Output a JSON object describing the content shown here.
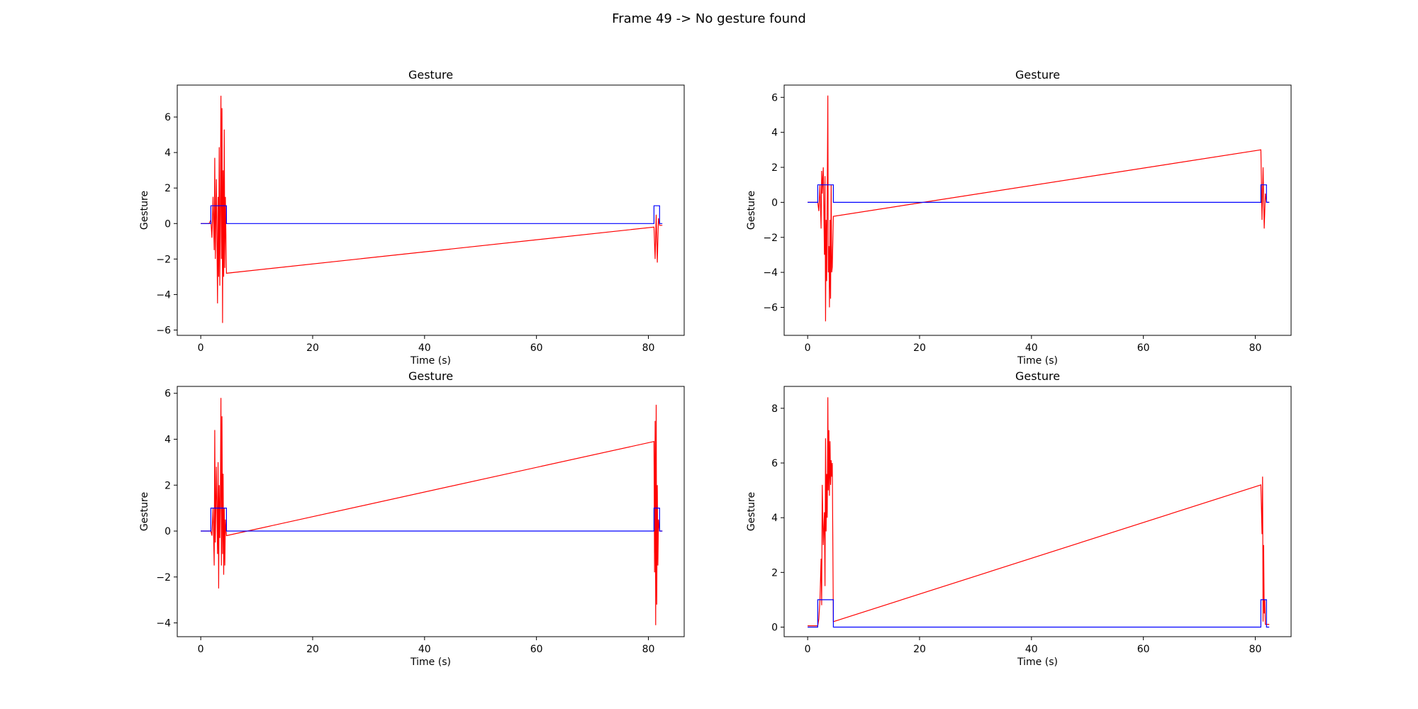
{
  "figure": {
    "suptitle": "Frame 49 -> No gesture found"
  },
  "colors": {
    "signal": "#ff0000",
    "label": "#0000ff",
    "axes": "#000000"
  },
  "chart_data": [
    {
      "type": "line",
      "title": "Gesture",
      "xlabel": "Time (s)",
      "ylabel": "Gesture",
      "xlim": [
        -4.2,
        86.4
      ],
      "ylim": [
        -6.3,
        7.8
      ],
      "xticks": [
        0,
        20,
        40,
        60,
        80
      ],
      "yticks": [
        -6,
        -4,
        -2,
        0,
        2,
        4,
        6
      ],
      "series": [
        {
          "color": "#ff0000",
          "x": [
            0,
            1,
            1.5,
            1.8,
            2.0,
            2.2,
            2.4,
            2.5,
            2.6,
            2.8,
            3.0,
            3.1,
            3.2,
            3.3,
            3.4,
            3.5,
            3.6,
            3.7,
            3.8,
            3.9,
            4.0,
            4.1,
            4.2,
            4.3,
            4.4,
            4.6,
            81.0,
            81.2,
            81.4,
            81.6,
            81.8,
            82.0,
            82.5
          ],
          "y": [
            0,
            0,
            0,
            0.2,
            -0.8,
            1.5,
            -1.5,
            3.7,
            -2.0,
            2.5,
            -4.5,
            1.5,
            -3.0,
            4.3,
            -3.5,
            0.8,
            7.2,
            -2.0,
            6.5,
            -5.6,
            3.0,
            -3.0,
            5.3,
            -2.5,
            1.5,
            -2.8,
            -0.2,
            -2.0,
            0.5,
            -2.2,
            0.3,
            -0.1,
            -0.1
          ]
        },
        {
          "color": "#0000ff",
          "x": [
            0,
            1.8,
            1.8,
            4.6,
            4.6,
            81.0,
            81.0,
            82.0,
            82.0,
            82.5
          ],
          "y": [
            0,
            0,
            1,
            1,
            0,
            0,
            1,
            1,
            0,
            0
          ]
        }
      ]
    },
    {
      "type": "line",
      "title": "Gesture",
      "xlabel": "Time (s)",
      "ylabel": "Gesture",
      "xlim": [
        -4.2,
        86.4
      ],
      "ylim": [
        -7.6,
        6.7
      ],
      "xticks": [
        0,
        20,
        40,
        60,
        80
      ],
      "yticks": [
        -6,
        -4,
        -2,
        0,
        2,
        4,
        6
      ],
      "series": [
        {
          "color": "#ff0000",
          "x": [
            0,
            1,
            1.8,
            2.0,
            2.2,
            2.4,
            2.5,
            2.6,
            2.8,
            3.0,
            3.1,
            3.2,
            3.3,
            3.4,
            3.5,
            3.6,
            3.7,
            3.8,
            3.9,
            4.0,
            4.1,
            4.2,
            4.3,
            4.4,
            4.6,
            81.0,
            81.2,
            81.4,
            81.6,
            81.8,
            82.0,
            82.5
          ],
          "y": [
            0,
            0,
            0,
            -0.5,
            1.0,
            -1.5,
            1.8,
            0.5,
            2.0,
            -3.0,
            1.5,
            -6.8,
            -1.0,
            -4.5,
            0.5,
            6.1,
            -4.0,
            -2.5,
            -6.0,
            -1.0,
            -5.5,
            1.0,
            -4.0,
            -3.7,
            -0.8,
            3.0,
            -1.0,
            2.0,
            -1.5,
            0.5,
            0,
            0
          ]
        },
        {
          "color": "#0000ff",
          "x": [
            0,
            1.8,
            1.8,
            4.6,
            4.6,
            81.0,
            81.0,
            82.0,
            82.0,
            82.5
          ],
          "y": [
            0,
            0,
            1,
            1,
            0,
            0,
            1,
            1,
            0,
            0
          ]
        }
      ]
    },
    {
      "type": "line",
      "title": "Gesture",
      "xlabel": "Time (s)",
      "ylabel": "Gesture",
      "xlim": [
        -4.2,
        86.4
      ],
      "ylim": [
        -4.6,
        6.3
      ],
      "xticks": [
        0,
        20,
        40,
        60,
        80
      ],
      "yticks": [
        -4,
        -2,
        0,
        2,
        4,
        6
      ],
      "series": [
        {
          "color": "#ff0000",
          "x": [
            0,
            1,
            1.8,
            2.0,
            2.2,
            2.4,
            2.5,
            2.6,
            2.8,
            3.0,
            3.1,
            3.2,
            3.3,
            3.4,
            3.5,
            3.6,
            3.7,
            3.8,
            3.9,
            4.0,
            4.1,
            4.2,
            4.3,
            4.4,
            4.6,
            81.0,
            81.1,
            81.2,
            81.3,
            81.4,
            81.5,
            81.6,
            81.7,
            81.8,
            82.0,
            82.5
          ],
          "y": [
            0,
            0,
            0,
            -0.2,
            1.0,
            -1.5,
            4.4,
            -0.5,
            2.8,
            -1.0,
            3.0,
            -2.5,
            2.0,
            -0.3,
            1.5,
            5.8,
            -1.5,
            5.0,
            -1.0,
            2.5,
            -1.9,
            1.0,
            -1.5,
            0.5,
            -0.2,
            3.9,
            -1.8,
            4.8,
            -4.1,
            5.5,
            -3.2,
            2.0,
            -1.5,
            0.5,
            0,
            0
          ]
        },
        {
          "color": "#0000ff",
          "x": [
            0,
            1.8,
            1.8,
            4.6,
            4.6,
            81.0,
            81.0,
            82.0,
            82.0,
            82.5
          ],
          "y": [
            0,
            0,
            1,
            1,
            0,
            0,
            1,
            1,
            0,
            0
          ]
        }
      ]
    },
    {
      "type": "line",
      "title": "Gesture",
      "xlabel": "Time (s)",
      "ylabel": "Gesture",
      "xlim": [
        -4.2,
        86.4
      ],
      "ylim": [
        -0.35,
        8.8
      ],
      "xticks": [
        0,
        20,
        40,
        60,
        80
      ],
      "yticks": [
        0,
        2,
        4,
        6,
        8
      ],
      "series": [
        {
          "color": "#ff0000",
          "x": [
            0,
            1,
            1.8,
            2.0,
            2.2,
            2.4,
            2.5,
            2.6,
            2.8,
            3.0,
            3.1,
            3.2,
            3.3,
            3.4,
            3.5,
            3.6,
            3.7,
            3.8,
            3.9,
            4.0,
            4.1,
            4.2,
            4.3,
            4.4,
            4.6,
            81.0,
            81.2,
            81.3,
            81.4,
            81.5,
            81.6,
            81.7,
            81.8,
            82.0,
            82.5
          ],
          "y": [
            0.05,
            0.05,
            0.05,
            0.3,
            1.0,
            2.5,
            0.8,
            5.2,
            3.0,
            4.2,
            1.5,
            6.9,
            3.5,
            5.6,
            4.0,
            8.4,
            5.0,
            7.2,
            4.8,
            6.8,
            5.2,
            6.1,
            5.5,
            6.0,
            0.2,
            5.2,
            3.4,
            5.5,
            0.2,
            3.0,
            0.5,
            1.0,
            0.1,
            0.1,
            0.1
          ]
        },
        {
          "color": "#0000ff",
          "x": [
            0,
            1.8,
            1.8,
            4.6,
            4.6,
            81.0,
            81.0,
            82.0,
            82.0,
            82.5
          ],
          "y": [
            0,
            0,
            1,
            1,
            0,
            0,
            1,
            1,
            0,
            0
          ]
        }
      ]
    }
  ]
}
